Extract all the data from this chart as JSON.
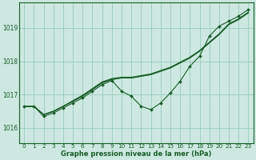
{
  "xlabel": "Graphe pression niveau de la mer (hPa)",
  "bg_color": "#cce8e0",
  "grid_color": "#99ccbb",
  "line_color": "#1a5c2a",
  "ylim": [
    1015.55,
    1019.75
  ],
  "xlim": [
    -0.5,
    23.5
  ],
  "yticks": [
    1016,
    1017,
    1018,
    1019
  ],
  "xticks": [
    0,
    1,
    2,
    3,
    4,
    5,
    6,
    7,
    8,
    9,
    10,
    11,
    12,
    13,
    14,
    15,
    16,
    17,
    18,
    19,
    20,
    21,
    22,
    23
  ],
  "series_plain": [
    [
      1016.65,
      1016.65,
      1016.4,
      1016.5,
      1016.65,
      1016.8,
      1016.95,
      1017.15,
      1017.35,
      1017.45,
      1017.5,
      1017.5,
      1017.55,
      1017.6,
      1017.7,
      1017.8,
      1017.95,
      1018.1,
      1018.3,
      1018.55,
      1018.8,
      1019.1,
      1019.25,
      1019.45
    ],
    [
      1016.65,
      1016.65,
      1016.4,
      1016.5,
      1016.65,
      1016.82,
      1016.98,
      1017.18,
      1017.38,
      1017.48,
      1017.52,
      1017.52,
      1017.57,
      1017.62,
      1017.72,
      1017.82,
      1017.97,
      1018.12,
      1018.32,
      1018.57,
      1018.82,
      1019.12,
      1019.27,
      1019.47
    ],
    [
      1016.65,
      1016.65,
      1016.4,
      1016.5,
      1016.65,
      1016.8,
      1016.96,
      1017.16,
      1017.36,
      1017.46,
      1017.5,
      1017.5,
      1017.55,
      1017.6,
      1017.7,
      1017.8,
      1017.95,
      1018.1,
      1018.3,
      1018.55,
      1018.8,
      1019.1,
      1019.25,
      1019.45
    ]
  ],
  "series_marker": [
    [
      1016.65,
      1016.65,
      1016.35,
      1016.45,
      1016.6,
      1016.75,
      1016.9,
      1017.1,
      1017.3,
      1017.42,
      1017.1,
      1016.95,
      1016.65,
      1016.55,
      1016.75,
      1017.05,
      1017.4,
      1017.85,
      1018.15,
      1018.75,
      1019.05,
      1019.2,
      1019.35,
      1019.55
    ]
  ]
}
